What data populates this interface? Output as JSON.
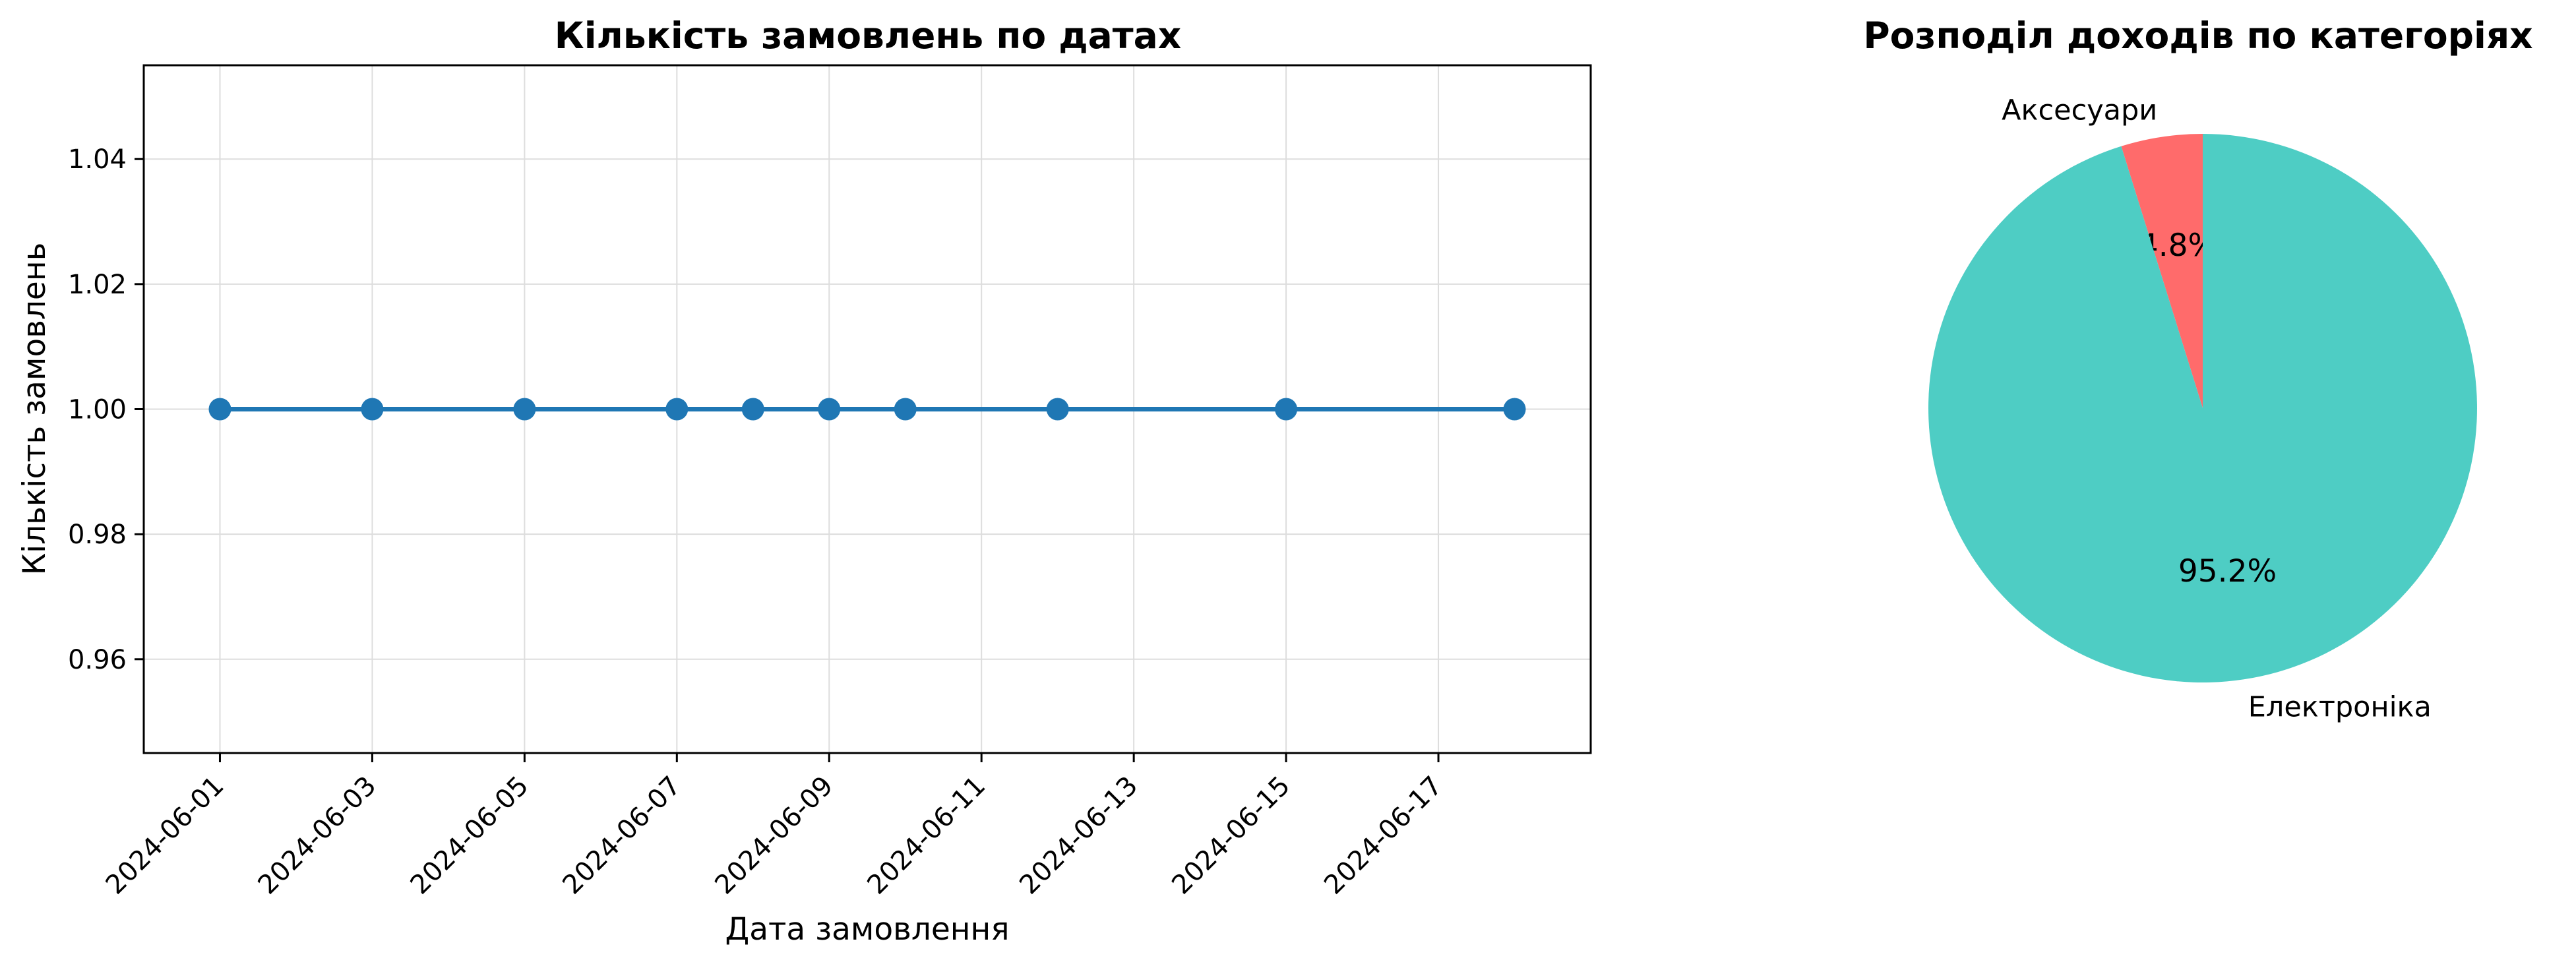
{
  "chart_data": [
    {
      "type": "line",
      "title": "Кількість замовлень по датах",
      "xlabel": "Дата замовлення",
      "ylabel": "Кількість замовлень",
      "x_ticks": [
        "2024-06-01",
        "2024-06-03",
        "2024-06-05",
        "2024-06-07",
        "2024-06-09",
        "2024-06-11",
        "2024-06-13",
        "2024-06-15",
        "2024-06-17"
      ],
      "y_ticks": [
        "0.96",
        "0.98",
        "1.00",
        "1.02",
        "1.04"
      ],
      "ylim": [
        0.945,
        1.055
      ],
      "xlim": [
        "2024-05-31",
        "2024-06-19"
      ],
      "grid": true,
      "series": [
        {
          "color": "#1f77b4",
          "points": [
            {
              "x": "2024-06-01",
              "y": 1
            },
            {
              "x": "2024-06-03",
              "y": 1
            },
            {
              "x": "2024-06-05",
              "y": 1
            },
            {
              "x": "2024-06-07",
              "y": 1
            },
            {
              "x": "2024-06-08",
              "y": 1
            },
            {
              "x": "2024-06-09",
              "y": 1
            },
            {
              "x": "2024-06-10",
              "y": 1
            },
            {
              "x": "2024-06-12",
              "y": 1
            },
            {
              "x": "2024-06-15",
              "y": 1
            },
            {
              "x": "2024-06-18",
              "y": 1
            }
          ]
        }
      ]
    },
    {
      "type": "pie",
      "title": "Розподіл доходів по категоріях",
      "slices": [
        {
          "label": "Аксесуари",
          "value": 4.8,
          "pct_label": "4.8%",
          "color": "#ff6b6b"
        },
        {
          "label": "Електроніка",
          "value": 95.2,
          "pct_label": "95.2%",
          "color": "#4ecdc4"
        }
      ]
    }
  ]
}
